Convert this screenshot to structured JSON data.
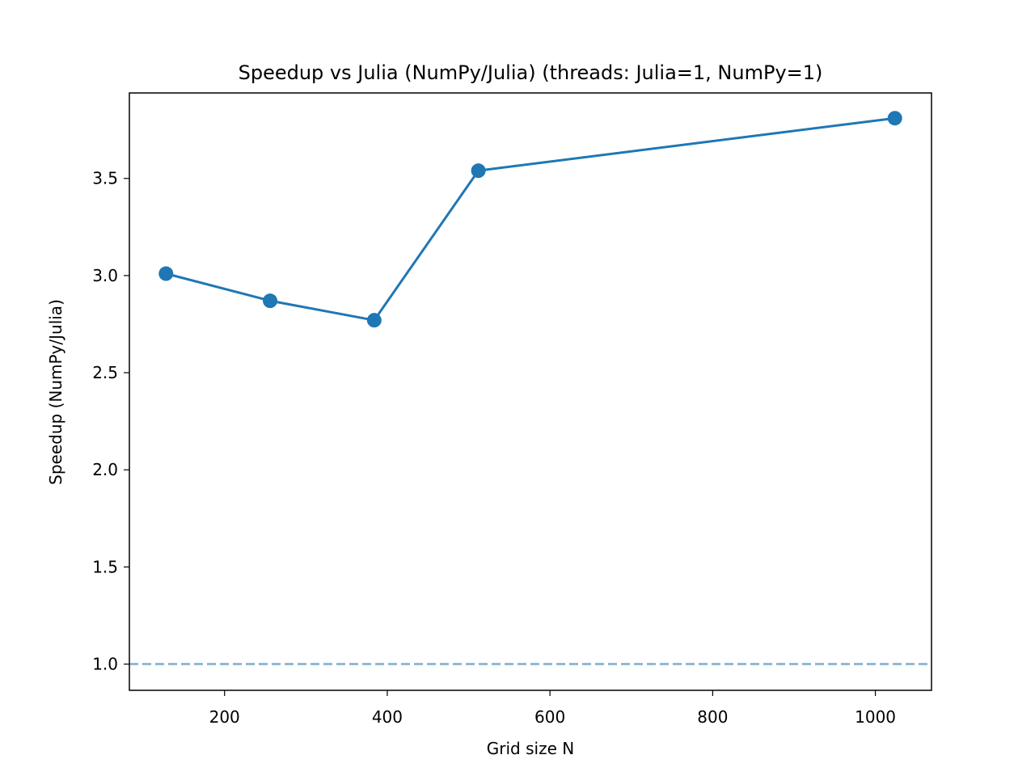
{
  "chart_data": {
    "type": "line",
    "title": "Speedup vs Julia (NumPy/Julia) (threads: Julia=1, NumPy=1)",
    "xlabel": "Grid size N",
    "ylabel": "Speedup (NumPy/Julia)",
    "xlim": [
      83,
      1069
    ],
    "ylim": [
      0.865,
      3.94
    ],
    "x_ticks": [
      200,
      400,
      600,
      800,
      1000
    ],
    "y_ticks": [
      1.0,
      1.5,
      2.0,
      2.5,
      3.0,
      3.5
    ],
    "x_tick_labels": [
      "200",
      "400",
      "600",
      "800",
      "1000"
    ],
    "y_tick_labels": [
      "1.0",
      "1.5",
      "2.0",
      "2.5",
      "3.0",
      "3.5"
    ],
    "series": [
      {
        "x": [
          128,
          256,
          384,
          512,
          1024
        ],
        "values": [
          3.01,
          2.87,
          2.77,
          3.54,
          3.81
        ],
        "color": "#1f77b4",
        "marker": "circle"
      }
    ],
    "reference_line": {
      "y": 1.0,
      "style": "dashed",
      "color": "#1f77b4"
    },
    "grid": false,
    "legend": false
  }
}
